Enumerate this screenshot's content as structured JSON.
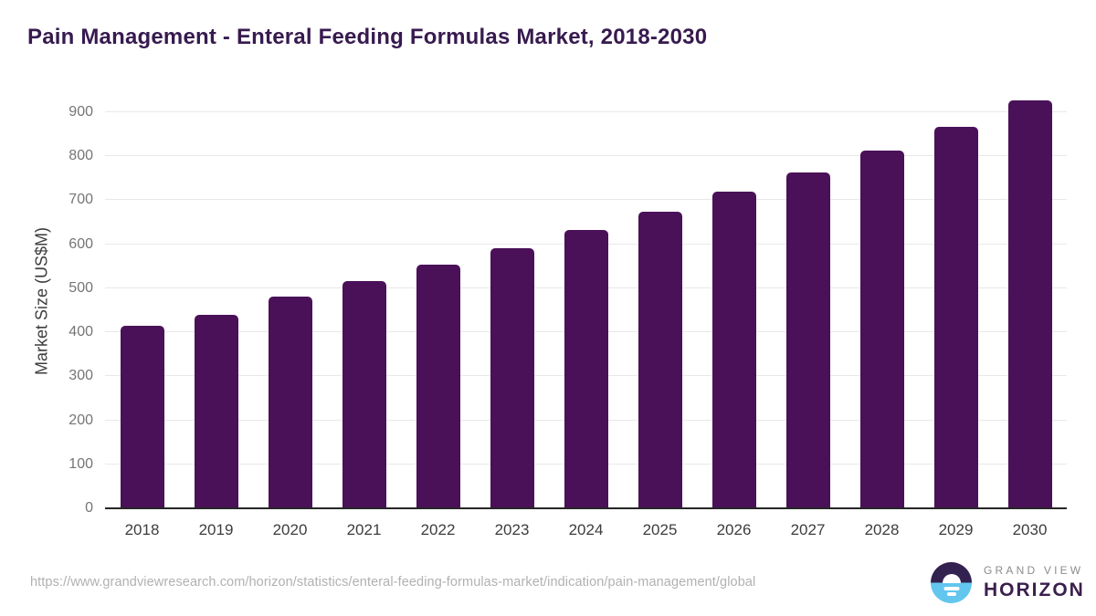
{
  "title": "Pain Management - Enteral Feeding Formulas Market, 2018-2030",
  "chart_data": {
    "type": "bar",
    "title": "Pain Management - Enteral Feeding Formulas Market, 2018-2030",
    "categories": [
      "2018",
      "2019",
      "2020",
      "2021",
      "2022",
      "2023",
      "2024",
      "2025",
      "2026",
      "2027",
      "2028",
      "2029",
      "2030"
    ],
    "values": [
      415,
      440,
      481,
      517,
      553,
      591,
      632,
      674,
      719,
      764,
      813,
      867,
      926
    ],
    "xlabel": "",
    "ylabel": "Market Size (US$M)",
    "yticks": [
      0,
      100,
      200,
      300,
      400,
      500,
      600,
      700,
      800,
      900
    ],
    "ylim": [
      0,
      937
    ],
    "grid": true,
    "legend_position": "none",
    "bar_color": "#4a1158"
  },
  "footer": {
    "source_url": "https://www.grandviewresearch.com/horizon/statistics/enteral-feeding-formulas-market/indication/pain-management/global",
    "logo": {
      "top_text": "GRAND VIEW",
      "bottom_text": "HORIZON"
    }
  },
  "colors": {
    "title_purple": "#371a4f",
    "bar_purple": "#4a1158",
    "gridline": "#e8e8e8",
    "axis": "#262626",
    "tick_label_gray": "#757575",
    "category_label_gray": "#3d3d3d",
    "url_gray": "#b1b1b1",
    "logo_blue": "#62c6ee",
    "logo_dark_purple": "#33214f"
  }
}
